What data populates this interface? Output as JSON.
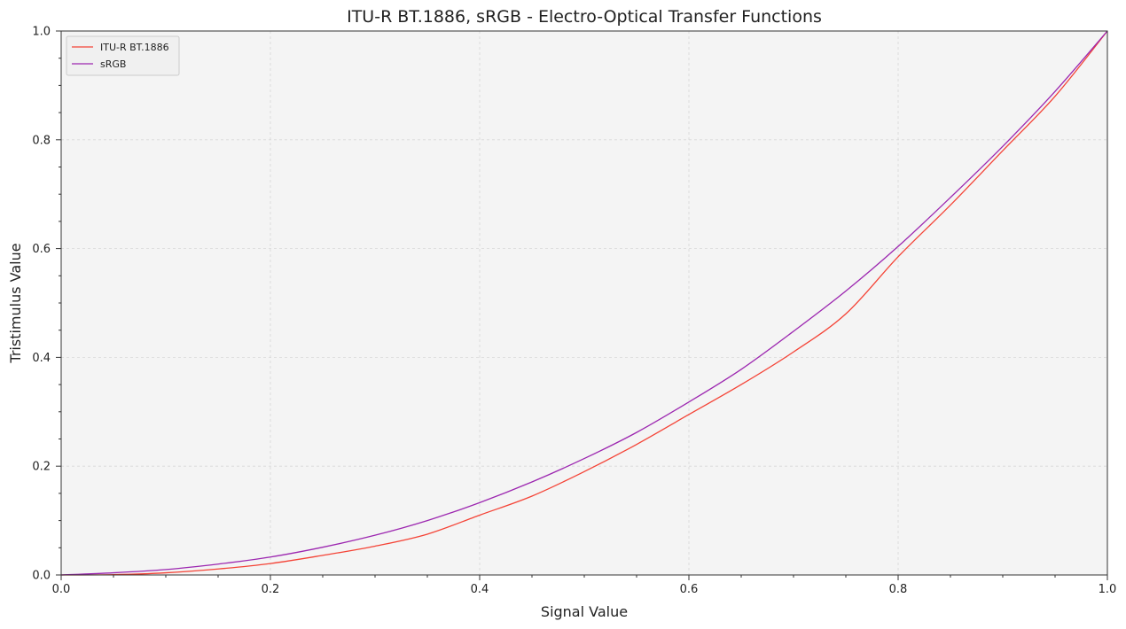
{
  "chart_data": {
    "type": "line",
    "title": "ITU-R BT.1886, sRGB - Electro-Optical Transfer Functions",
    "xlabel": "Signal Value",
    "ylabel": "Tristimulus Value",
    "xlim": [
      0.0,
      1.0
    ],
    "ylim": [
      0.0,
      1.0
    ],
    "x_ticks": [
      "0.0",
      "0.2",
      "0.4",
      "0.6",
      "0.8",
      "1.0"
    ],
    "y_ticks": [
      "0.0",
      "0.2",
      "0.4",
      "0.6",
      "0.8",
      "1.0"
    ],
    "grid": true,
    "legend_position": "top-left",
    "x": [
      0.0,
      0.05,
      0.1,
      0.15,
      0.2,
      0.25,
      0.3,
      0.35,
      0.4,
      0.45,
      0.5,
      0.55,
      0.6,
      0.65,
      0.7,
      0.75,
      0.8,
      0.85,
      0.9,
      0.95,
      1.0
    ],
    "series": [
      {
        "name": "ITU-R BT.1886",
        "color": "#f44336",
        "values": [
          0.0,
          0.0006,
          0.004,
          0.011,
          0.021,
          0.036,
          0.053,
          0.075,
          0.11,
          0.145,
          0.19,
          0.24,
          0.295,
          0.35,
          0.41,
          0.48,
          0.585,
          0.68,
          0.78,
          0.88,
          1.0
        ]
      },
      {
        "name": "sRGB",
        "color": "#9c27b0",
        "values": [
          0.0,
          0.004,
          0.01,
          0.02,
          0.033,
          0.051,
          0.073,
          0.1,
          0.133,
          0.171,
          0.214,
          0.262,
          0.318,
          0.378,
          0.448,
          0.522,
          0.604,
          0.694,
          0.788,
          0.889,
          1.0
        ]
      }
    ]
  }
}
